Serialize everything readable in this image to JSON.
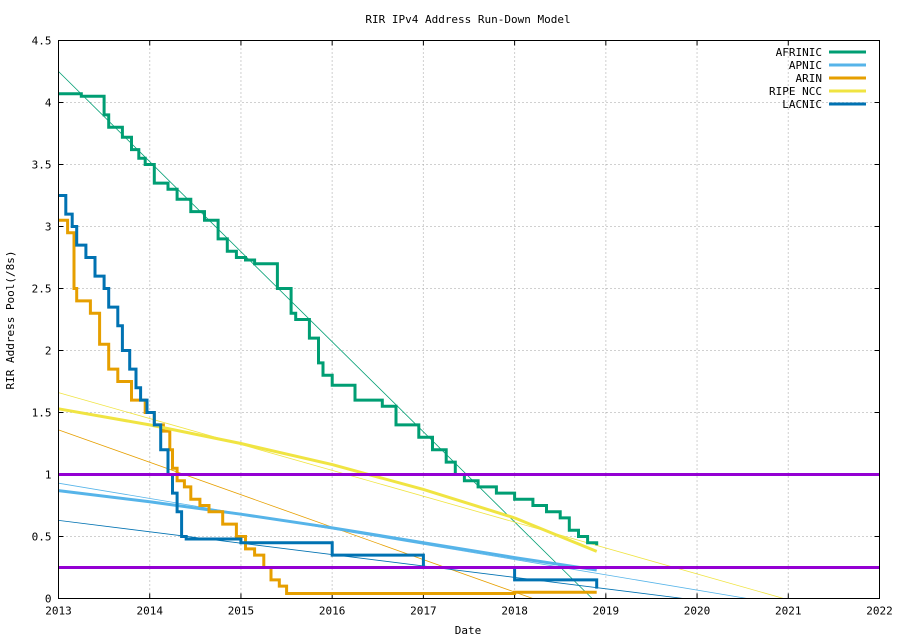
{
  "chart_data": {
    "type": "line",
    "title": "RIR IPv4 Address Run-Down Model",
    "xlabel": "Date",
    "ylabel": "RIR Address Pool(/8s)",
    "xlim": [
      2013,
      2022
    ],
    "ylim": [
      0,
      4.5
    ],
    "x_ticks": [
      "2013",
      "2014",
      "2015",
      "2016",
      "2017",
      "2018",
      "2019",
      "2020",
      "2021",
      "2022"
    ],
    "y_ticks": [
      "0",
      "0.5",
      "1",
      "1.5",
      "2",
      "2.5",
      "3",
      "3.5",
      "4",
      "4.5"
    ],
    "grid": true,
    "legend_position": "top-right",
    "series": [
      {
        "name": "AFRINIC",
        "color": "#009e73",
        "type": "step",
        "x": [
          2013.0,
          2013.25,
          2013.5,
          2013.55,
          2013.7,
          2013.8,
          2013.88,
          2013.95,
          2014.05,
          2014.2,
          2014.3,
          2014.45,
          2014.6,
          2014.75,
          2014.85,
          2014.95,
          2015.05,
          2015.15,
          2015.4,
          2015.55,
          2015.6,
          2015.75,
          2015.85,
          2015.9,
          2016.0,
          2016.25,
          2016.55,
          2016.7,
          2016.95,
          2017.1,
          2017.25,
          2017.35,
          2017.45,
          2017.6,
          2017.8,
          2018.0,
          2018.2,
          2018.35,
          2018.5,
          2018.6,
          2018.7,
          2018.8,
          2018.9
        ],
        "y": [
          4.07,
          4.05,
          3.9,
          3.8,
          3.72,
          3.62,
          3.55,
          3.5,
          3.35,
          3.3,
          3.22,
          3.12,
          3.05,
          2.9,
          2.8,
          2.75,
          2.73,
          2.7,
          2.5,
          2.3,
          2.25,
          2.1,
          1.9,
          1.8,
          1.72,
          1.6,
          1.55,
          1.4,
          1.3,
          1.2,
          1.1,
          1.0,
          0.95,
          0.9,
          0.85,
          0.8,
          0.75,
          0.7,
          0.65,
          0.55,
          0.5,
          0.45,
          0.43
        ]
      },
      {
        "name": "APNIC",
        "color": "#56b4e9",
        "type": "line",
        "x": [
          2013.0,
          2014.0,
          2015.0,
          2016.0,
          2017.0,
          2018.0,
          2018.9
        ],
        "y": [
          0.87,
          0.78,
          0.68,
          0.57,
          0.45,
          0.33,
          0.23
        ]
      },
      {
        "name": "ARIN",
        "color": "#e69f00",
        "type": "step",
        "x": [
          2013.0,
          2013.1,
          2013.17,
          2013.2,
          2013.35,
          2013.45,
          2013.55,
          2013.65,
          2013.8,
          2013.95,
          2014.05,
          2014.15,
          2014.22,
          2014.25,
          2014.3,
          2014.38,
          2014.45,
          2014.55,
          2014.65,
          2014.8,
          2014.95,
          2015.05,
          2015.15,
          2015.25,
          2015.33,
          2015.42,
          2015.5,
          2016.0,
          2017.0,
          2018.0,
          2018.9
        ],
        "y": [
          3.05,
          2.95,
          2.5,
          2.4,
          2.3,
          2.05,
          1.85,
          1.75,
          1.6,
          1.5,
          1.4,
          1.35,
          1.2,
          1.05,
          0.95,
          0.9,
          0.8,
          0.75,
          0.7,
          0.6,
          0.5,
          0.4,
          0.35,
          0.25,
          0.15,
          0.1,
          0.04,
          0.04,
          0.04,
          0.05,
          0.05
        ]
      },
      {
        "name": "RIPE NCC",
        "color": "#f0e442",
        "type": "line",
        "x": [
          2013.0,
          2014.0,
          2015.0,
          2016.0,
          2017.0,
          2018.0,
          2018.9
        ],
        "y": [
          1.53,
          1.4,
          1.25,
          1.08,
          0.88,
          0.65,
          0.38
        ]
      },
      {
        "name": "LACNIC",
        "color": "#0072b2",
        "type": "step",
        "x": [
          2013.0,
          2013.08,
          2013.15,
          2013.2,
          2013.3,
          2013.4,
          2013.5,
          2013.55,
          2013.65,
          2013.7,
          2013.78,
          2013.85,
          2013.9,
          2013.97,
          2014.05,
          2014.12,
          2014.2,
          2014.25,
          2014.3,
          2014.35,
          2014.4,
          2015.0,
          2016.0,
          2017.0,
          2018.0,
          2018.9
        ],
        "y": [
          3.25,
          3.1,
          3.0,
          2.85,
          2.75,
          2.6,
          2.5,
          2.35,
          2.2,
          2.0,
          1.85,
          1.7,
          1.6,
          1.5,
          1.4,
          1.2,
          1.0,
          0.85,
          0.7,
          0.5,
          0.48,
          0.45,
          0.35,
          0.25,
          0.15,
          0.08
        ]
      }
    ],
    "trend_lines": [
      {
        "series": "AFRINIC",
        "color": "#009e73",
        "x": [
          2013.0,
          2018.85
        ],
        "y": [
          4.25,
          0.0
        ]
      },
      {
        "series": "APNIC",
        "color": "#56b4e9",
        "x": [
          2013.0,
          2020.55
        ],
        "y": [
          0.93,
          0.0
        ]
      },
      {
        "series": "ARIN",
        "color": "#e69f00",
        "x": [
          2013.0,
          2018.2
        ],
        "y": [
          1.36,
          0.0
        ]
      },
      {
        "series": "RIPE NCC",
        "color": "#f0e442",
        "x": [
          2013.0,
          2020.95
        ],
        "y": [
          1.66,
          0.0
        ]
      },
      {
        "series": "LACNIC",
        "color": "#0072b2",
        "x": [
          2013.0,
          2019.85
        ],
        "y": [
          0.63,
          0.0
        ]
      }
    ],
    "reference_lines": [
      {
        "y": 1.0,
        "color": "#9400d3"
      },
      {
        "y": 0.25,
        "color": "#9400d3"
      }
    ]
  }
}
